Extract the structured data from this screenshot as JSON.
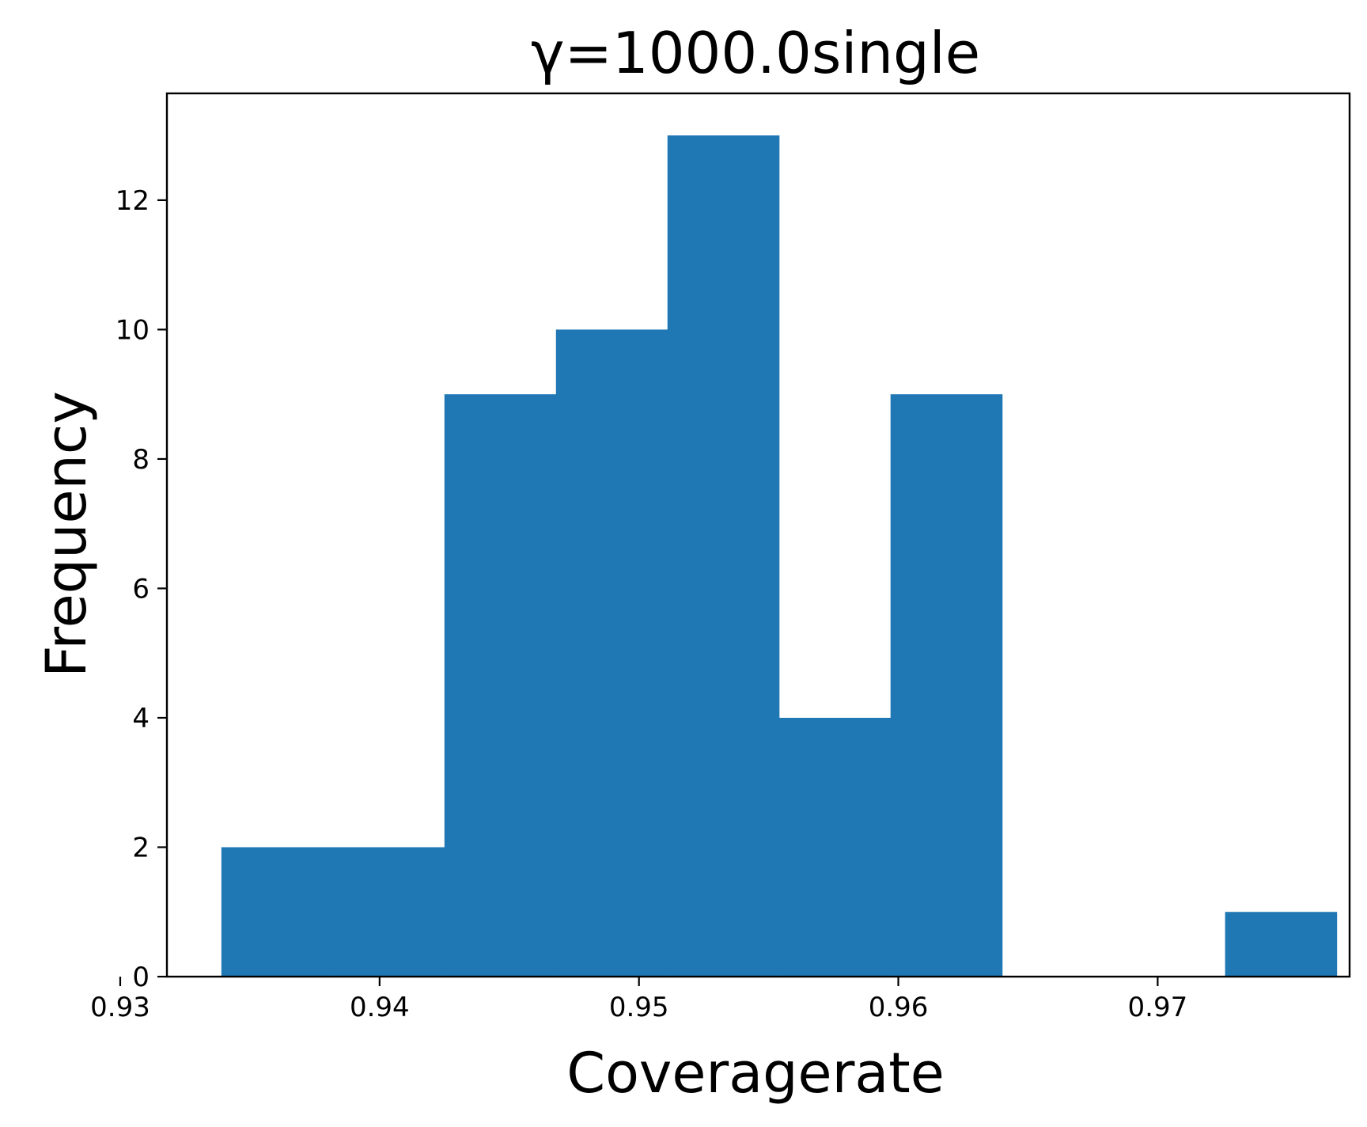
{
  "chart_data": {
    "type": "bar",
    "title": "γ=1000.0single",
    "xlabel": "Coveragerate",
    "ylabel": "Frequency",
    "bar_color": "#1f77b4",
    "xlim": [
      0.9318,
      0.9774
    ],
    "ylim": [
      0,
      13.65
    ],
    "grid": false,
    "legend": "none",
    "x_ticks": [
      {
        "value": 0.93,
        "label": "0.93"
      },
      {
        "value": 0.94,
        "label": "0.94"
      },
      {
        "value": 0.95,
        "label": "0.95"
      },
      {
        "value": 0.96,
        "label": "0.96"
      },
      {
        "value": 0.97,
        "label": "0.97"
      }
    ],
    "y_ticks": [
      {
        "value": 0,
        "label": "0"
      },
      {
        "value": 2,
        "label": "2"
      },
      {
        "value": 4,
        "label": "4"
      },
      {
        "value": 6,
        "label": "6"
      },
      {
        "value": 8,
        "label": "8"
      },
      {
        "value": 10,
        "label": "10"
      },
      {
        "value": 12,
        "label": "12"
      }
    ],
    "bins": [
      {
        "x0": 0.9339,
        "x1": 0.9382,
        "count": 2
      },
      {
        "x0": 0.9382,
        "x1": 0.9425,
        "count": 2
      },
      {
        "x0": 0.9425,
        "x1": 0.9468,
        "count": 9
      },
      {
        "x0": 0.9468,
        "x1": 0.9511,
        "count": 10
      },
      {
        "x0": 0.9511,
        "x1": 0.9554,
        "count": 13
      },
      {
        "x0": 0.9554,
        "x1": 0.9597,
        "count": 4
      },
      {
        "x0": 0.9597,
        "x1": 0.964,
        "count": 9
      },
      {
        "x0": 0.964,
        "x1": 0.9683,
        "count": 0
      },
      {
        "x0": 0.9683,
        "x1": 0.9726,
        "count": 0
      },
      {
        "x0": 0.9726,
        "x1": 0.9769,
        "count": 1
      }
    ]
  }
}
